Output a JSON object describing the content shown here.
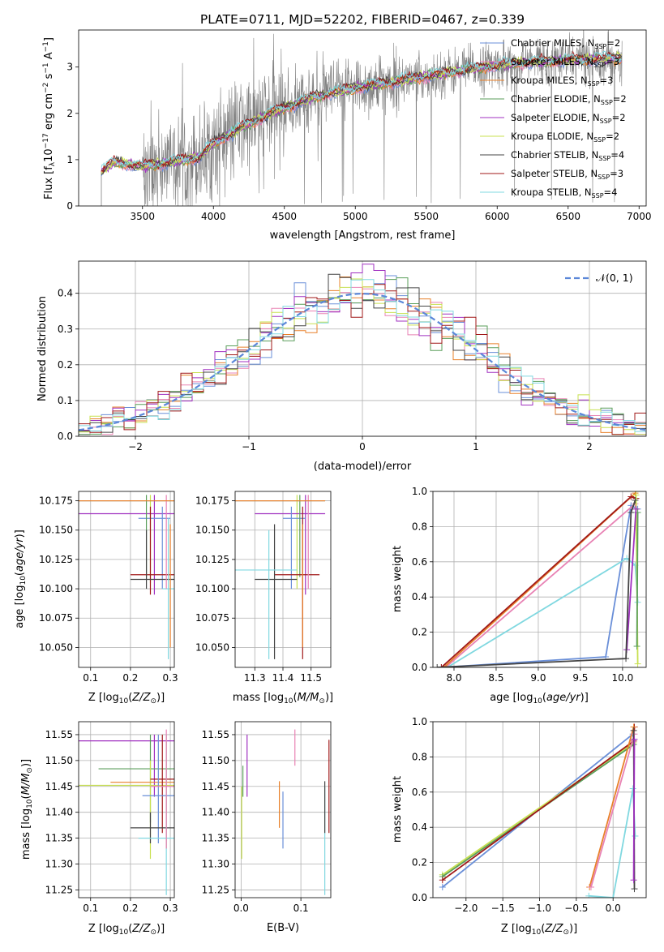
{
  "figure_title": "PLATE=0711, MJD=52202, FIBERID=0467, z=0.339",
  "colors": {
    "chabrier_miles": "#6a8fd8",
    "salpeter_miles": "#e882b4",
    "kroupa_miles": "#e8802a",
    "chabrier_elodie": "#5a9e5a",
    "salpeter_elodie": "#a030c0",
    "kroupa_elodie": "#c8e050",
    "chabrier_stelib": "#444444",
    "salpeter_stelib": "#a01818",
    "kroupa_stelib": "#80d8e0",
    "data": "#808080",
    "normal": "#5b87d8"
  },
  "chart_data": [
    {
      "id": "spectrum",
      "type": "line",
      "xlabel": "wavelength [Angstrom, rest frame]",
      "ylabel_parts": [
        "Flux [f",
        "λ",
        "10",
        "−17",
        " erg cm",
        "−2",
        " s",
        "−1",
        " A",
        "−1",
        "]"
      ],
      "xlim": [
        3050,
        7050
      ],
      "ylim": [
        0,
        3.8
      ],
      "xticks": [
        "3500",
        "4000",
        "4500",
        "5000",
        "5500",
        "6000",
        "6500",
        "7000"
      ],
      "yticks": [
        "0",
        "1",
        "2",
        "3"
      ],
      "legend": [
        {
          "label": "Chabrier MILES, N",
          "sub": "SSP",
          "tail": "=2",
          "key": "chabrier_miles"
        },
        {
          "label": "Salpeter MILES, N",
          "sub": "SSP",
          "tail": "=3",
          "key": "salpeter_miles"
        },
        {
          "label": "Kroupa MILES, N",
          "sub": "SSP",
          "tail": "=3",
          "key": "kroupa_miles"
        },
        {
          "label": "Chabrier ELODIE, N",
          "sub": "SSP",
          "tail": "=2",
          "key": "chabrier_elodie"
        },
        {
          "label": "Salpeter ELODIE, N",
          "sub": "SSP",
          "tail": "=2",
          "key": "salpeter_elodie"
        },
        {
          "label": "Kroupa ELODIE, N",
          "sub": "SSP",
          "tail": "=2",
          "key": "kroupa_elodie"
        },
        {
          "label": "Chabrier STELIB, N",
          "sub": "SSP",
          "tail": "=4",
          "key": "chabrier_stelib"
        },
        {
          "label": "Salpeter STELIB, N",
          "sub": "SSP",
          "tail": "=3",
          "key": "salpeter_stelib"
        },
        {
          "label": "Kroupa STELIB, N",
          "sub": "SSP",
          "tail": "=4",
          "key": "kroupa_stelib"
        }
      ],
      "continuum": [
        [
          3210,
          0.75
        ],
        [
          3300,
          0.95
        ],
        [
          3500,
          0.85
        ],
        [
          3700,
          0.95
        ],
        [
          3900,
          1.05
        ],
        [
          4000,
          1.35
        ],
        [
          4200,
          1.7
        ],
        [
          4400,
          2.0
        ],
        [
          4700,
          2.35
        ],
        [
          5000,
          2.55
        ],
        [
          5300,
          2.7
        ],
        [
          5600,
          2.85
        ],
        [
          5900,
          3.0
        ],
        [
          6200,
          3.1
        ],
        [
          6500,
          3.15
        ],
        [
          6900,
          3.2
        ]
      ]
    },
    {
      "id": "residuals",
      "type": "line",
      "xlabel": "(data-model)/error",
      "ylabel": "Normed distribution",
      "xlim": [
        -2.5,
        2.5
      ],
      "ylim": [
        0,
        0.49
      ],
      "xticks": [
        "−2",
        "−1",
        "0",
        "1",
        "2"
      ],
      "yticks": [
        "0.0",
        "0.1",
        "0.2",
        "0.3",
        "0.4"
      ],
      "legend_label": "𝒩(0, 1)"
    },
    {
      "id": "age_vs_Z",
      "type": "scatter",
      "xlabel": "Z [log",
      "xlabel_sub": "10",
      "xlabel_tail": "(Z/Z",
      "xlabel_end": ")]",
      "ylabel": "age  [log10(age/yr)]",
      "xlim": [
        0.07,
        0.31
      ],
      "ylim": [
        10.033,
        10.183
      ],
      "xticks": [
        "0.1",
        "0.2",
        "0.3"
      ],
      "yticks": [
        "10.050",
        "10.075",
        "10.100",
        "10.125",
        "10.150",
        "10.175"
      ]
    },
    {
      "id": "age_vs_mass",
      "type": "scatter",
      "xlabel": "mass [log10(M/M☉)]",
      "xlim": [
        11.23,
        11.57
      ],
      "ylim": [
        10.033,
        10.183
      ],
      "xticks": [
        "11.3",
        "11.4",
        "11.5"
      ],
      "yticks": [
        "10.050",
        "10.075",
        "10.100",
        "10.125",
        "10.150",
        "10.175"
      ]
    },
    {
      "id": "weight_vs_age",
      "type": "line",
      "xlabel": "age  [log10(age/yr)]",
      "ylabel": "mass weight",
      "xlim": [
        7.75,
        10.28
      ],
      "ylim": [
        0,
        1
      ],
      "xticks": [
        "8.0",
        "8.5",
        "9.0",
        "9.5",
        "10.0"
      ],
      "yticks": [
        "0.0",
        "0.2",
        "0.4",
        "0.6",
        "0.8",
        "1.0"
      ]
    },
    {
      "id": "mass_vs_Z",
      "type": "scatter",
      "xlabel": "Z [log10(Z/Z☉)]",
      "ylabel": "mass [log10(M/M☉)]",
      "xlim": [
        0.07,
        0.31
      ],
      "ylim": [
        11.235,
        11.575
      ],
      "xticks": [
        "0.1",
        "0.2",
        "0.3"
      ],
      "yticks": [
        "11.25",
        "11.30",
        "11.35",
        "11.40",
        "11.45",
        "11.50",
        "11.55"
      ]
    },
    {
      "id": "mass_vs_ebv",
      "type": "scatter",
      "xlabel": "E(B-V)",
      "xlim": [
        -0.01,
        0.15
      ],
      "ylim": [
        11.235,
        11.575
      ],
      "xticks": [
        "0.0",
        "0.1"
      ],
      "yticks": [
        "11.25",
        "11.30",
        "11.35",
        "11.40",
        "11.45",
        "11.50",
        "11.55"
      ]
    },
    {
      "id": "weight_vs_Z",
      "type": "line",
      "xlabel": "Z [log10(Z/Z☉)]",
      "ylabel": "mass weight",
      "xlim": [
        -2.45,
        0.45
      ],
      "ylim": [
        0,
        1
      ],
      "xticks": [
        "−2.0",
        "−1.5",
        "−1.0",
        "−0.5",
        "0.0"
      ],
      "yticks": [
        "0.0",
        "0.2",
        "0.4",
        "0.6",
        "0.8",
        "1.0"
      ]
    }
  ]
}
